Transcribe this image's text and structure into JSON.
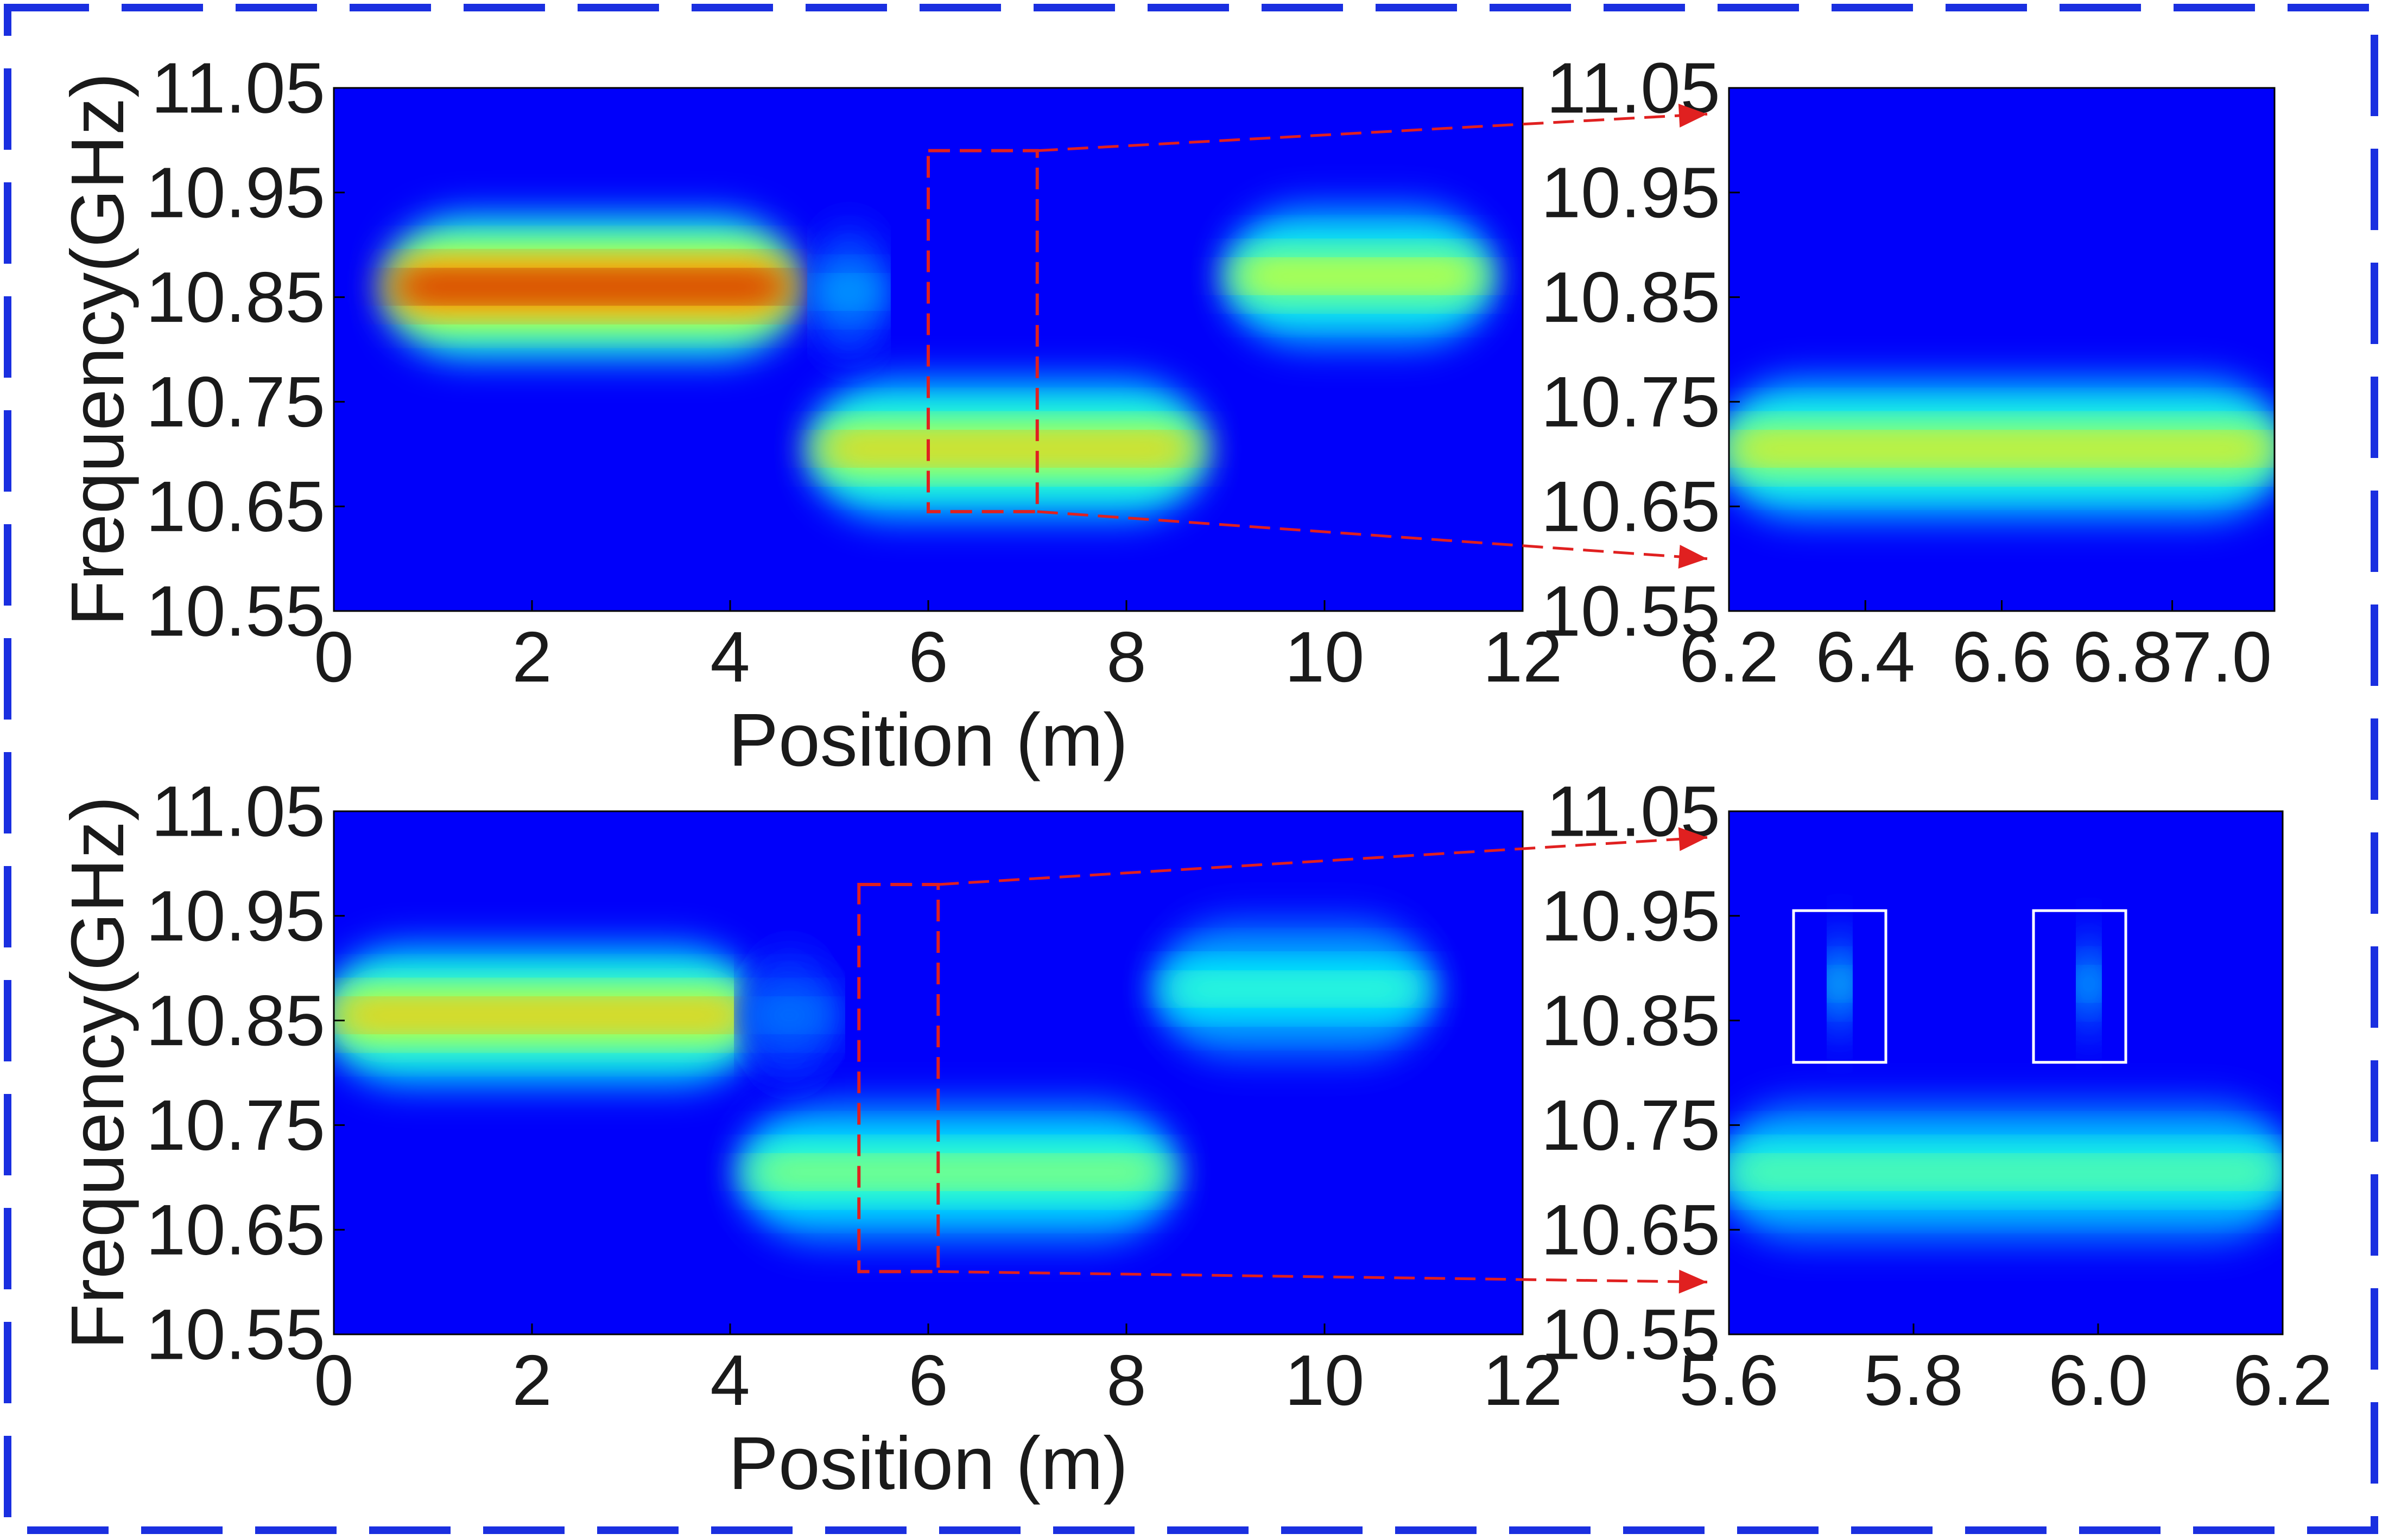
{
  "colors": {
    "frame_border": "#1a2fe0",
    "zoom_marker": "#e02020",
    "window_box": "#ffffff",
    "colormap": "jet"
  },
  "chart_data": [
    {
      "id": "top-main",
      "type": "heatmap",
      "title": "",
      "xlabel": "Position (m)",
      "ylabel": "Frequency(GHz)",
      "xlim": [
        0,
        12
      ],
      "ylim": [
        10.55,
        11.05
      ],
      "x_ticks": [
        "0",
        "2",
        "4",
        "6",
        "8",
        "10",
        "12"
      ],
      "y_ticks": [
        "10.55",
        "10.65",
        "10.75",
        "10.85",
        "10.95",
        "11.05"
      ],
      "bands": [
        {
          "x": [
            0.6,
            4.6
          ],
          "y": 10.86,
          "peak": 0.96
        },
        {
          "x": [
            4.9,
            8.7
          ],
          "y": 10.705,
          "peak": 0.7
        },
        {
          "x": [
            9.1,
            11.6
          ],
          "y": 10.87,
          "peak": 0.62
        },
        {
          "x": [
            4.9,
            5.5
          ],
          "y": 10.855,
          "peak": 0.3
        }
      ],
      "zoom_region": {
        "x": [
          6.0,
          7.1
        ],
        "y": [
          10.645,
          10.99
        ]
      }
    },
    {
      "id": "top-zoom",
      "type": "heatmap",
      "title": "",
      "xlabel": "",
      "ylabel": "",
      "xlim": [
        6.2,
        7.0
      ],
      "ylim": [
        10.55,
        11.05
      ],
      "x_ticks": [
        "6.2",
        "6.4",
        "6.6",
        "6.87.0"
      ],
      "y_ticks": [
        "10.55",
        "10.65",
        "10.75",
        "10.85",
        "10.95",
        "11.05"
      ],
      "bands": [
        {
          "x": [
            6.2,
            7.0
          ],
          "y": 10.705,
          "peak": 0.66
        }
      ]
    },
    {
      "id": "bottom-main",
      "type": "heatmap",
      "title": "",
      "xlabel": "Position (m)",
      "ylabel": "Frequency(GHz)",
      "xlim": [
        0,
        12
      ],
      "ylim": [
        10.55,
        11.05
      ],
      "x_ticks": [
        "0",
        "2",
        "4",
        "6",
        "8",
        "10",
        "12"
      ],
      "y_ticks": [
        "10.55",
        "10.65",
        "10.75",
        "10.85",
        "10.95",
        "11.05"
      ],
      "bands": [
        {
          "x": [
            0,
            4.2
          ],
          "y": 10.855,
          "peak": 0.72
        },
        {
          "x": [
            4.2,
            8.4
          ],
          "y": 10.705,
          "peak": 0.55
        },
        {
          "x": [
            8.4,
            11.0
          ],
          "y": 10.88,
          "peak": 0.45
        },
        {
          "x": [
            4.2,
            5.0
          ],
          "y": 10.855,
          "peak": 0.25
        }
      ],
      "zoom_region": {
        "x": [
          5.3,
          6.1
        ],
        "y": [
          10.61,
          10.98
        ]
      }
    },
    {
      "id": "bottom-zoom",
      "type": "heatmap",
      "title": "",
      "xlabel": "",
      "ylabel": "",
      "xlim": [
        5.6,
        6.2
      ],
      "ylim": [
        10.55,
        11.05
      ],
      "x_ticks": [
        "5.6",
        "5.8",
        "6.0",
        "6.2"
      ],
      "y_ticks": [
        "10.55",
        "10.65",
        "10.75",
        "10.85",
        "10.95",
        "11.05"
      ],
      "bands": [
        {
          "x": [
            5.6,
            6.2
          ],
          "y": 10.705,
          "peak": 0.5
        },
        {
          "x": [
            5.71,
            5.73
          ],
          "y": 10.885,
          "peak": 0.42
        },
        {
          "x": [
            5.98,
            6.0
          ],
          "y": 10.885,
          "peak": 0.38
        }
      ],
      "windows": [
        {
          "x": [
            5.67,
            5.77
          ],
          "y": [
            10.81,
            10.955
          ]
        },
        {
          "x": [
            5.93,
            6.03
          ],
          "y": [
            10.81,
            10.955
          ]
        }
      ]
    }
  ]
}
